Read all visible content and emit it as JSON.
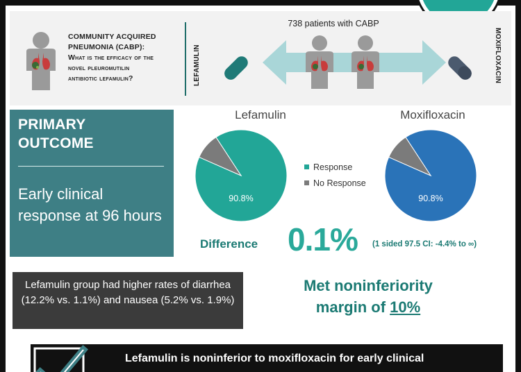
{
  "question": {
    "title_line1": "COMMUNITY ACQUIRED",
    "title_line2": "PNEUMONIA (CABP):",
    "question_line1": "What is the efficacy of the",
    "question_line2": "novel pleuromutilin",
    "question_line3": "antibiotic lefamulin?"
  },
  "study": {
    "patients_label": "738 patients with CABP",
    "left_arm": "LEFAMULIN",
    "right_arm": "MOXIFLOXACIN"
  },
  "outcome": {
    "title_line1": "PRIMARY",
    "title_line2": "OUTCOME",
    "description": "Early clinical response at 96 hours"
  },
  "chart_data": {
    "type": "pie",
    "charts": [
      {
        "title": "Lefamulin",
        "slices": [
          {
            "label": "Response",
            "value": 90.8,
            "color": "#22a697"
          },
          {
            "label": "No Response",
            "value": 9.2,
            "color": "#7b7b7b"
          }
        ],
        "data_label": "90.8%"
      },
      {
        "title": "Moxifloxacin",
        "slices": [
          {
            "label": "Response",
            "value": 90.8,
            "color": "#2a73b8"
          },
          {
            "label": "No Response",
            "value": 9.2,
            "color": "#7b7b7b"
          }
        ],
        "data_label": "90.8%"
      }
    ],
    "legend": [
      "Response",
      "No Response"
    ],
    "legend_placement": "center"
  },
  "legend": {
    "response_label": "Response",
    "no_response_label": "No Response",
    "response_color": "#22a697",
    "no_response_color": "#7b7b7b"
  },
  "difference": {
    "label": "Difference",
    "value": "0.1%",
    "ci": "(1 sided 97.5 CI: -4.4% to ∞)"
  },
  "adverse_events": {
    "text": "Lefamulin group had higher rates of diarrhea (12.2% vs. 1.1%) and nausea (5.2% vs. 1.9%)"
  },
  "noninferiority": {
    "line1": "Met noninferiority",
    "line2_prefix": "margin of ",
    "margin": "10%"
  },
  "conclusion": {
    "text": "Lefamulin is noninferior to moxifloxacin for early clinical"
  },
  "colors": {
    "teal": "#22a697",
    "dark_teal": "#3e7f85",
    "blue": "#2a73b8",
    "gray": "#7b7b7b",
    "dark_box": "#3b3b3b"
  },
  "icons": [
    "person-with-lungs-icon",
    "pill-icon",
    "double-arrow-icon",
    "check-mark-icon"
  ]
}
